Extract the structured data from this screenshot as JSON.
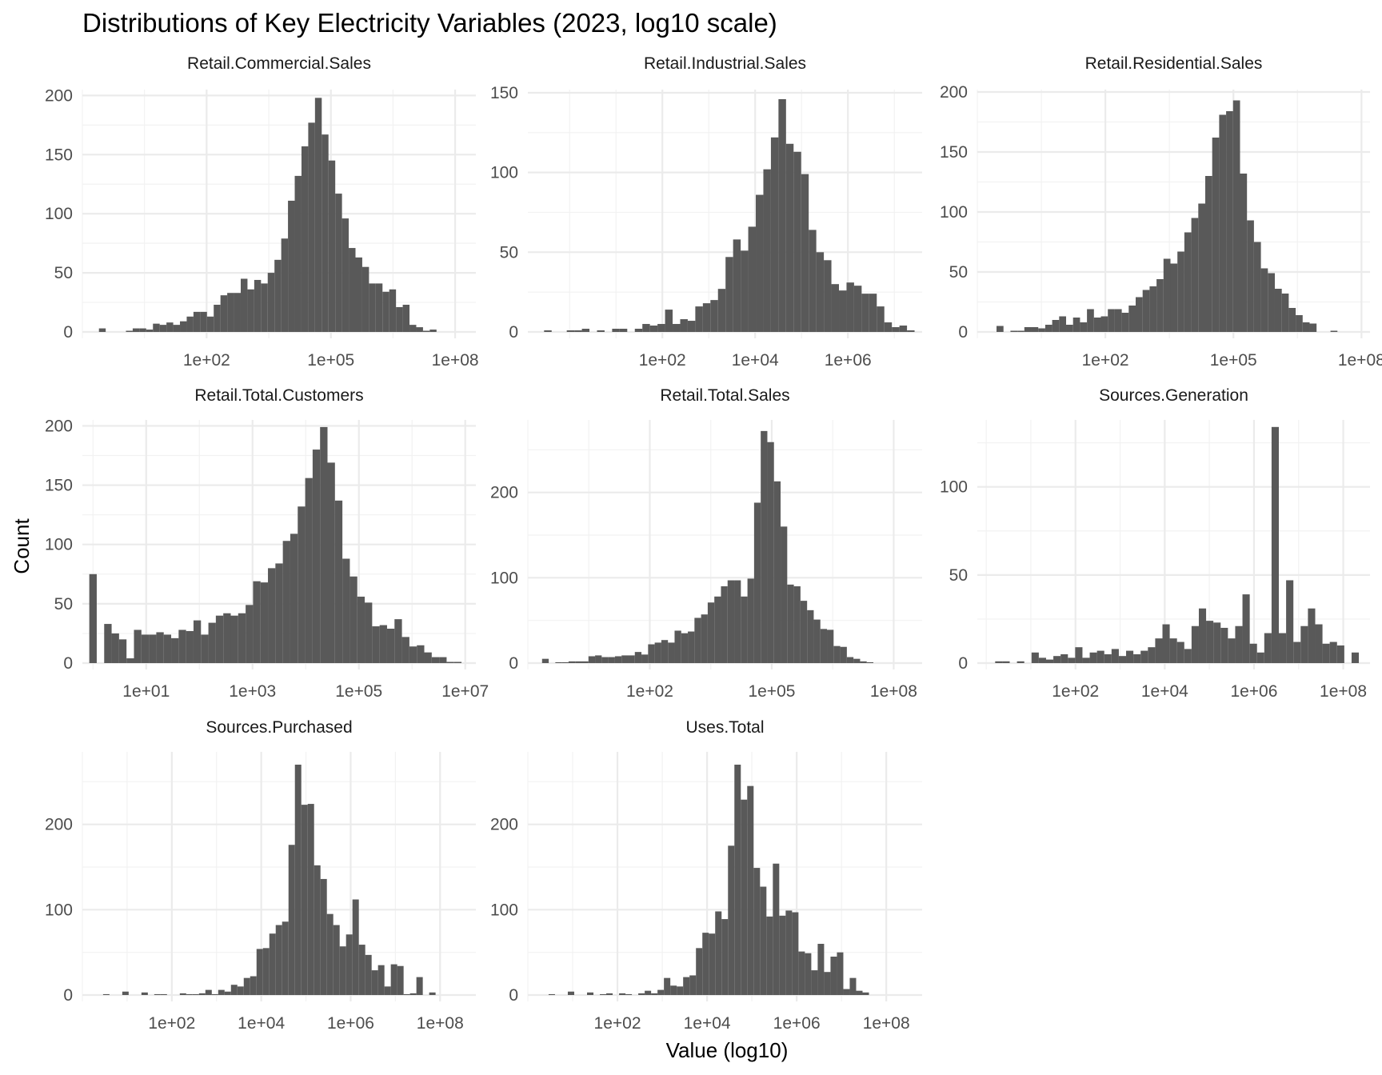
{
  "chart_data": {
    "type": "bar",
    "title": "Distributions of Key Electricity Variables (2023, log10 scale)",
    "xlabel": "Value (log10)",
    "ylabel": "Count",
    "grid": true,
    "legend": "none",
    "bar_color": "#595959",
    "facets": [
      {
        "name": "Retail.Commercial.Sales",
        "log10_xlim": [
          -1.0,
          8.5
        ],
        "log10_bin_start": -0.6,
        "log10_binwidth": 0.163,
        "counts": [
          3,
          0,
          0,
          0,
          1,
          3,
          3,
          2,
          7,
          6,
          8,
          6,
          9,
          13,
          17,
          17,
          13,
          23,
          31,
          33,
          33,
          45,
          36,
          44,
          41,
          50,
          61,
          79,
          111,
          132,
          157,
          177,
          198,
          167,
          145,
          117,
          96,
          71,
          63,
          55,
          41,
          41,
          34,
          36,
          21,
          23,
          6,
          4,
          1,
          2
        ],
        "x_ticks": [
          {
            "log": 2,
            "label": "1e+02"
          },
          {
            "log": 5,
            "label": "1e+05"
          },
          {
            "log": 8,
            "label": "1e+08"
          }
        ],
        "y_ticks": [
          0,
          50,
          100,
          150,
          200
        ],
        "ylim": [
          0,
          205
        ]
      },
      {
        "name": "Retail.Industrial.Sales",
        "log10_xlim": [
          -0.9,
          7.6
        ],
        "log10_bin_start": -0.55,
        "log10_binwidth": 0.163,
        "counts": [
          1,
          0,
          0,
          1,
          1,
          2,
          0,
          1,
          0,
          2,
          2,
          0,
          2,
          5,
          4,
          5,
          14,
          5,
          8,
          7,
          16,
          18,
          20,
          27,
          47,
          58,
          51,
          66,
          86,
          102,
          122,
          146,
          118,
          113,
          99,
          64,
          50,
          45,
          30,
          26,
          31,
          29,
          24,
          24,
          16,
          6,
          3,
          4,
          1
        ],
        "x_ticks": [
          {
            "log": 2,
            "label": "1e+02"
          },
          {
            "log": 4,
            "label": "1e+04"
          },
          {
            "log": 6,
            "label": "1e+06"
          }
        ],
        "y_ticks": [
          0,
          50,
          100,
          150
        ],
        "ylim": [
          0,
          152
        ]
      },
      {
        "name": "Retail.Residential.Sales",
        "log10_xlim": [
          -1.0,
          8.2
        ],
        "log10_bin_start": -0.55,
        "log10_binwidth": 0.163,
        "counts": [
          5,
          0,
          1,
          1,
          4,
          4,
          3,
          6,
          10,
          13,
          6,
          12,
          8,
          19,
          12,
          13,
          19,
          19,
          16,
          22,
          29,
          35,
          38,
          44,
          61,
          57,
          67,
          83,
          95,
          107,
          130,
          162,
          181,
          184,
          193,
          132,
          93,
          75,
          53,
          49,
          36,
          32,
          20,
          14,
          8,
          7,
          0,
          0,
          1
        ],
        "x_ticks": [
          {
            "log": 2,
            "label": "1e+02"
          },
          {
            "log": 5,
            "label": "1e+05"
          },
          {
            "log": 8,
            "label": "1e+08"
          }
        ],
        "y_ticks": [
          0,
          50,
          100,
          150,
          200
        ],
        "ylim": [
          0,
          202
        ]
      },
      {
        "name": "Retail.Total.Customers",
        "log10_xlim": [
          -0.2,
          7.2
        ],
        "log10_bin_start": -0.07,
        "log10_binwidth": 0.14,
        "counts": [
          75,
          0,
          33,
          25,
          20,
          4,
          28,
          24,
          24,
          26,
          24,
          21,
          28,
          27,
          36,
          24,
          34,
          40,
          42,
          40,
          42,
          49,
          69,
          68,
          80,
          84,
          103,
          109,
          132,
          156,
          180,
          199,
          169,
          137,
          88,
          73,
          56,
          51,
          31,
          32,
          29,
          37,
          22,
          14,
          15,
          9,
          5,
          5,
          1,
          1
        ],
        "x_ticks": [
          {
            "log": 1,
            "label": "1e+01"
          },
          {
            "log": 3,
            "label": "1e+03"
          },
          {
            "log": 5,
            "label": "1e+05"
          },
          {
            "log": 7,
            "label": "1e+07"
          }
        ],
        "y_ticks": [
          0,
          50,
          100,
          150,
          200
        ],
        "ylim": [
          0,
          205
        ]
      },
      {
        "name": "Retail.Total.Sales",
        "log10_xlim": [
          -1.0,
          8.7
        ],
        "log10_bin_start": -0.65,
        "log10_binwidth": 0.163,
        "counts": [
          5,
          0,
          1,
          1,
          2,
          2,
          2,
          8,
          9,
          7,
          7,
          8,
          9,
          9,
          13,
          10,
          22,
          24,
          27,
          24,
          38,
          35,
          37,
          53,
          57,
          71,
          78,
          90,
          97,
          97,
          78,
          99,
          188,
          272,
          259,
          213,
          160,
          92,
          90,
          73,
          62,
          51,
          40,
          39,
          20,
          19,
          7,
          5,
          2,
          1
        ],
        "x_ticks": [
          {
            "log": 2,
            "label": "1e+02"
          },
          {
            "log": 5,
            "label": "1e+05"
          },
          {
            "log": 8,
            "label": "1e+08"
          }
        ],
        "y_ticks": [
          0,
          100,
          200
        ],
        "ylim": [
          0,
          285
        ]
      },
      {
        "name": "Sources.Generation",
        "log10_xlim": [
          -0.2,
          8.6
        ],
        "log10_bin_start": 0.2,
        "log10_binwidth": 0.163,
        "counts": [
          1,
          1,
          0,
          1,
          0,
          6,
          3,
          2,
          4,
          5,
          3,
          9,
          3,
          6,
          7,
          5,
          8,
          4,
          7,
          5,
          7,
          9,
          14,
          22,
          14,
          12,
          8,
          21,
          31,
          24,
          23,
          20,
          14,
          21,
          39,
          11,
          6,
          17,
          134,
          17,
          47,
          12,
          21,
          31,
          22,
          11,
          12,
          10,
          0,
          6
        ],
        "x_ticks": [
          {
            "log": 2,
            "label": "1e+02"
          },
          {
            "log": 4,
            "label": "1e+04"
          },
          {
            "log": 6,
            "label": "1e+06"
          },
          {
            "log": 8,
            "label": "1e+08"
          }
        ],
        "y_ticks": [
          0,
          50,
          100
        ],
        "ylim": [
          0,
          138
        ]
      },
      {
        "name": "Sources.Purchased",
        "log10_xlim": [
          0.0,
          8.8
        ],
        "log10_bin_start": 0.32,
        "log10_binwidth": 0.143,
        "counts": [
          0,
          1,
          0,
          0,
          4,
          0,
          0,
          3,
          0,
          1,
          1,
          0,
          0,
          2,
          1,
          1,
          2,
          6,
          1,
          6,
          4,
          12,
          10,
          20,
          22,
          54,
          55,
          72,
          82,
          86,
          176,
          270,
          223,
          224,
          152,
          136,
          95,
          82,
          57,
          71,
          112,
          59,
          47,
          29,
          35,
          10,
          36,
          34,
          1,
          2,
          21,
          0,
          3
        ],
        "x_ticks": [
          {
            "log": 2,
            "label": "1e+02"
          },
          {
            "log": 4,
            "label": "1e+04"
          },
          {
            "log": 6,
            "label": "1e+06"
          },
          {
            "log": 8,
            "label": "1e+08"
          }
        ],
        "y_ticks": [
          0,
          100,
          200
        ],
        "ylim": [
          0,
          285
        ]
      },
      {
        "name": "Uses.Total",
        "log10_xlim": [
          0.0,
          8.8
        ],
        "log10_bin_start": 0.32,
        "log10_binwidth": 0.143,
        "counts": [
          0,
          1,
          0,
          0,
          4,
          0,
          0,
          3,
          0,
          1,
          2,
          0,
          2,
          1,
          0,
          2,
          5,
          2,
          6,
          20,
          11,
          10,
          21,
          23,
          55,
          73,
          72,
          98,
          89,
          175,
          270,
          229,
          245,
          149,
          127,
          92,
          154,
          93,
          99,
          97,
          51,
          49,
          29,
          60,
          27,
          45,
          50,
          7,
          20,
          5,
          3
        ],
        "x_ticks": [
          {
            "log": 2,
            "label": "1e+02"
          },
          {
            "log": 4,
            "label": "1e+04"
          },
          {
            "log": 6,
            "label": "1e+06"
          },
          {
            "log": 8,
            "label": "1e+08"
          }
        ],
        "y_ticks": [
          0,
          100,
          200
        ],
        "ylim": [
          0,
          285
        ]
      }
    ]
  }
}
